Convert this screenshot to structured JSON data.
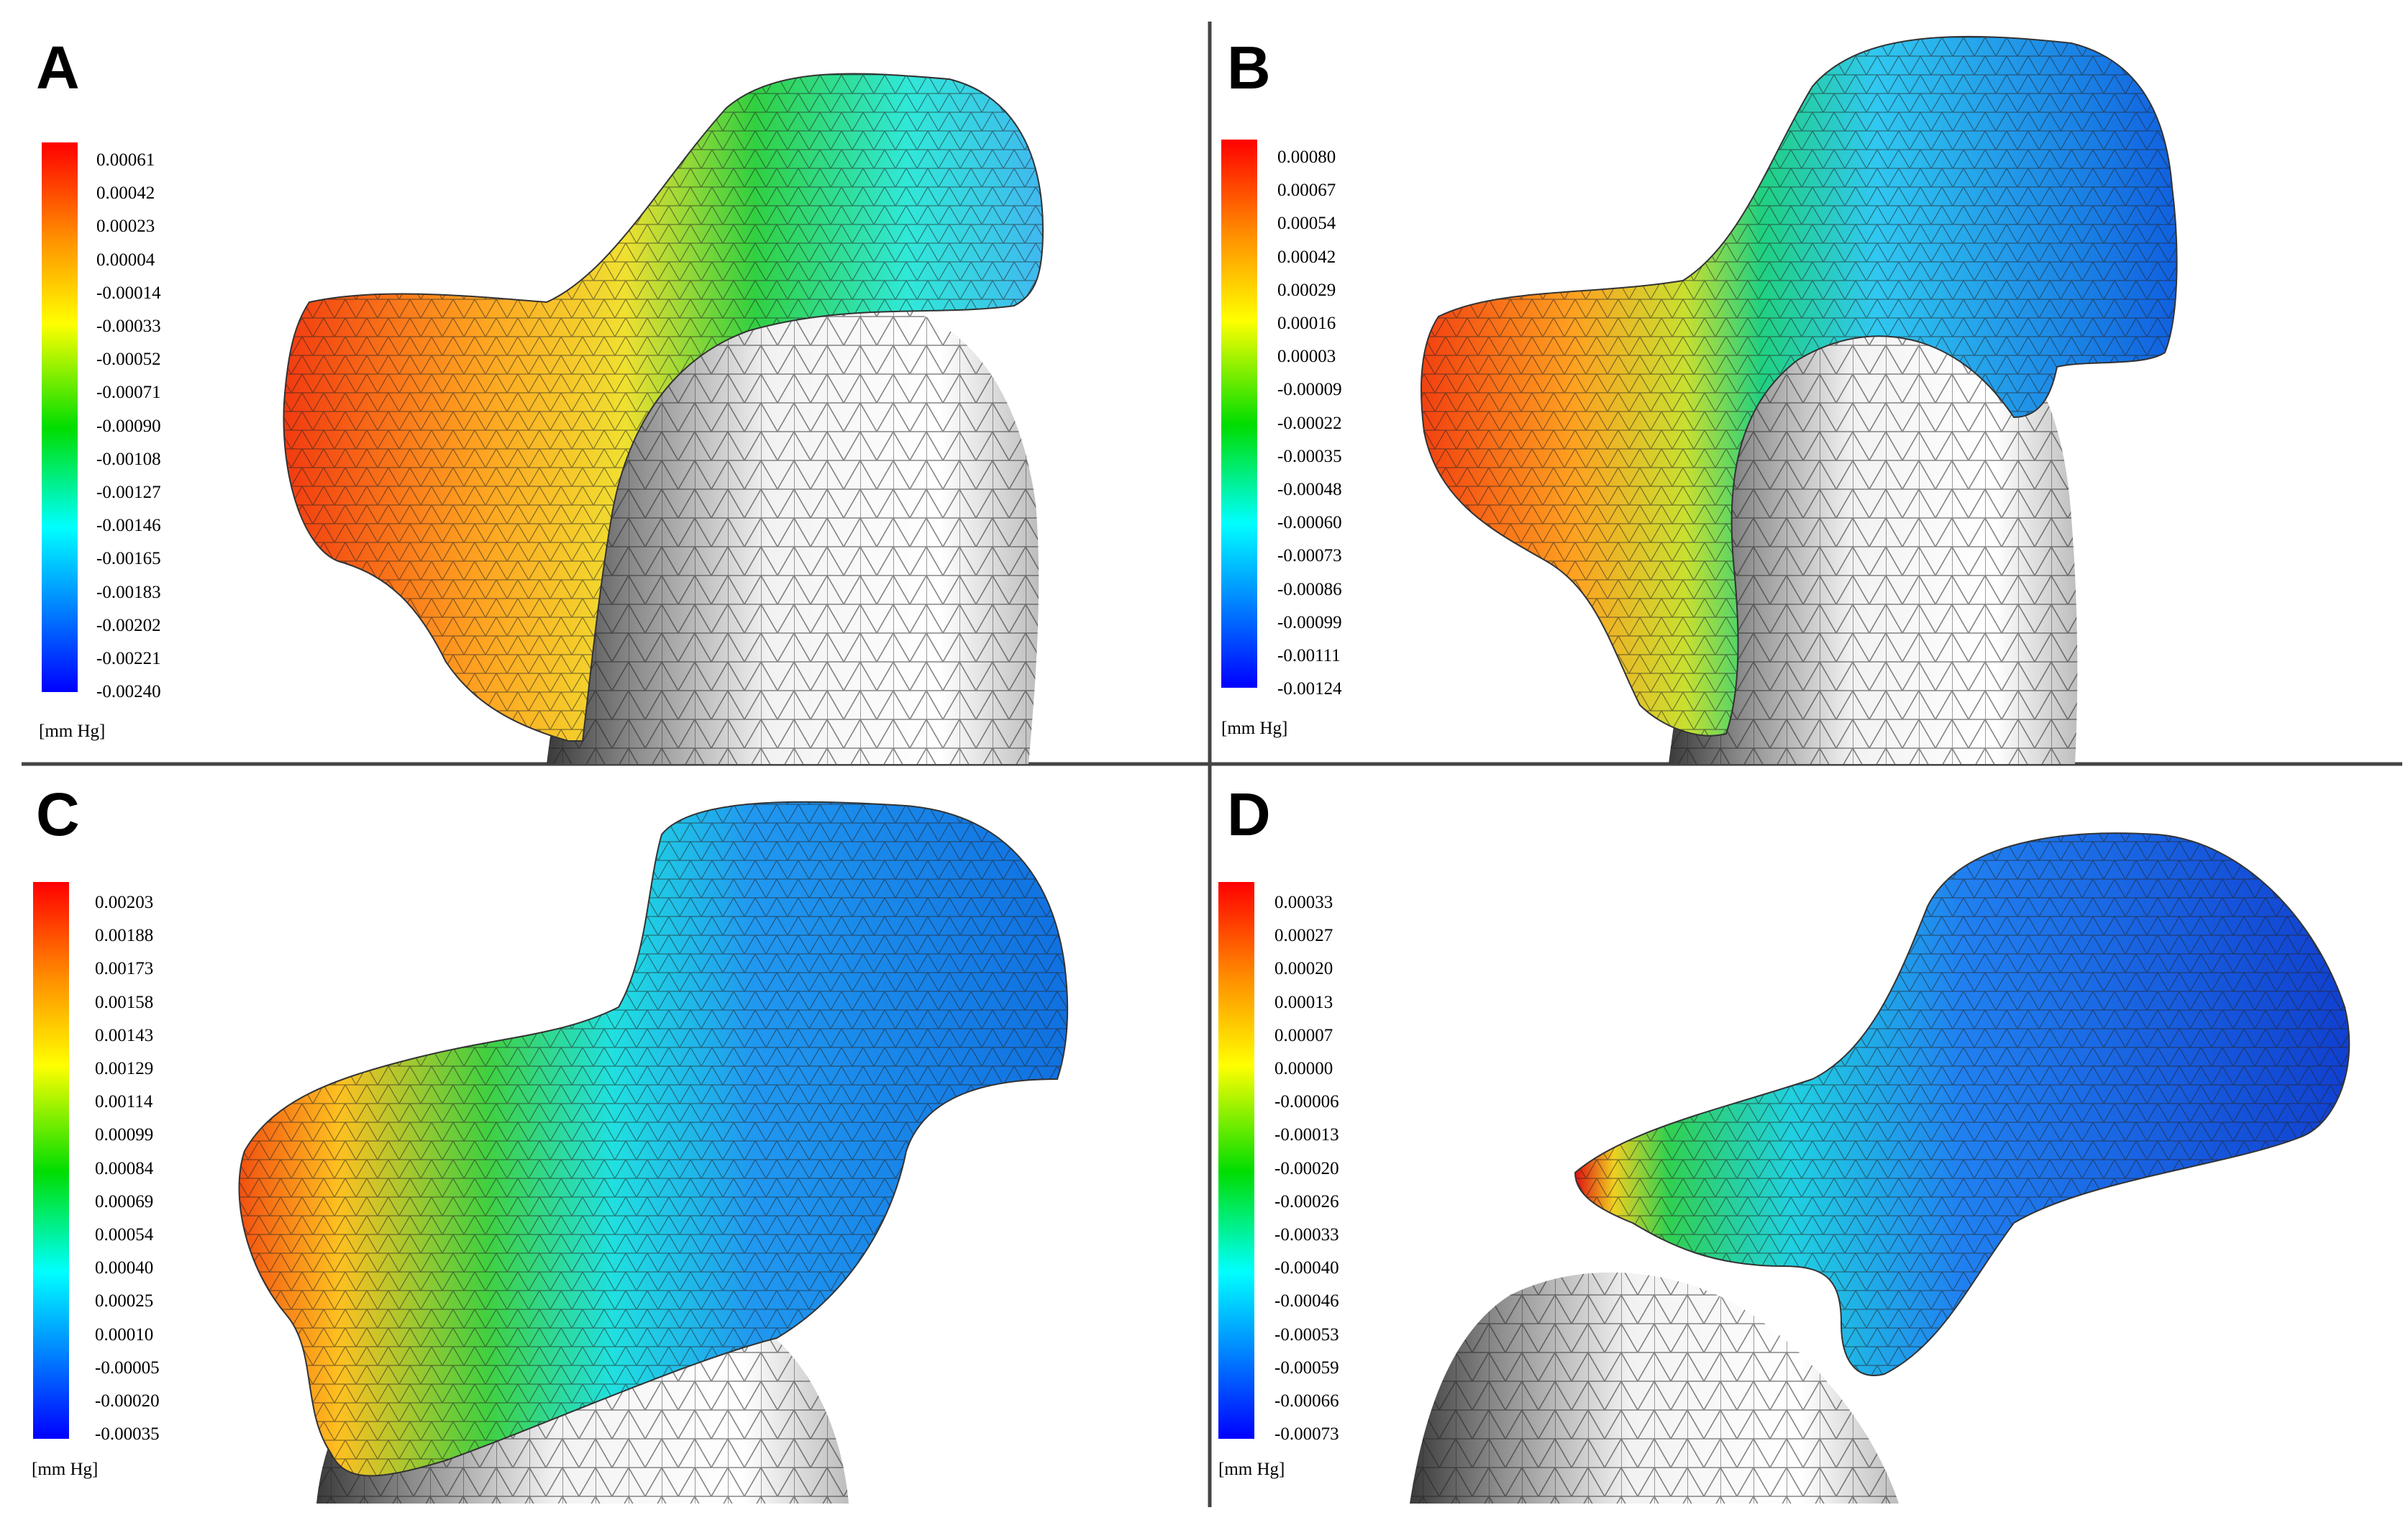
{
  "panels": [
    {
      "label": "A",
      "unit": "[mm Hg]",
      "ticks": [
        "0.00061",
        "0.00042",
        "0.00023",
        "0.00004",
        "-0.00014",
        "-0.00033",
        "-0.00052",
        "-0.00071",
        "-0.00090",
        "-0.00108",
        "-0.00127",
        "-0.00146",
        "-0.00165",
        "-0.00183",
        "-0.00202",
        "-0.00221",
        "-0.00240"
      ]
    },
    {
      "label": "B",
      "unit": "[mm Hg]",
      "ticks": [
        "0.00080",
        "0.00067",
        "0.00054",
        "0.00042",
        "0.00029",
        "0.00016",
        "0.00003",
        "-0.00009",
        "-0.00022",
        "-0.00035",
        "-0.00048",
        "-0.00060",
        "-0.00073",
        "-0.00086",
        "-0.00099",
        "-0.00111",
        "-0.00124"
      ]
    },
    {
      "label": "C",
      "unit": "[mm Hg]",
      "ticks": [
        "0.00203",
        "0.00188",
        "0.00173",
        "0.00158",
        "0.00143",
        "0.00129",
        "0.00114",
        "0.00099",
        "0.00084",
        "0.00069",
        "0.00054",
        "0.00040",
        "0.00025",
        "0.00010",
        "-0.00005",
        "-0.00020",
        "-0.00035"
      ]
    },
    {
      "label": "D",
      "unit": "[mm Hg]",
      "ticks": [
        "0.00033",
        "0.00027",
        "0.00020",
        "0.00013",
        "0.00007",
        "0.00000",
        "-0.00006",
        "-0.00013",
        "-0.00020",
        "-0.00026",
        "-0.00033",
        "-0.00040",
        "-0.00046",
        "-0.00053",
        "-0.00059",
        "-0.00066",
        "-0.00073"
      ]
    }
  ],
  "colors": {
    "high": "#ff0000",
    "mid": "#00dd00",
    "low": "#0000ff",
    "bone": "#e4e4e4"
  }
}
